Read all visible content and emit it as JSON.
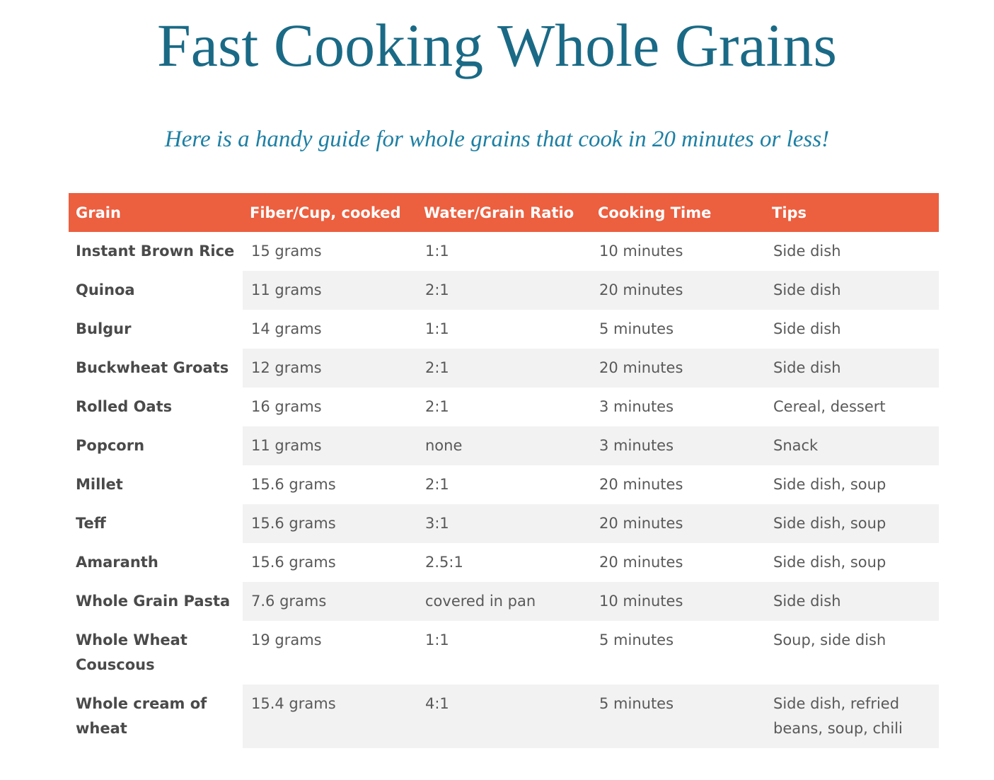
{
  "header": {
    "title": "Fast Cooking Whole Grains",
    "subtitle": "Here is a handy guide for whole grains that cook in 20 minutes or less!"
  },
  "table": {
    "headers": [
      "Grain",
      "Fiber/Cup, cooked",
      "Water/Grain Ratio",
      "Cooking Time",
      "Tips"
    ],
    "rows": [
      [
        "Instant Brown Rice",
        "15 grams",
        "1:1",
        "10 minutes",
        "Side dish"
      ],
      [
        "Quinoa",
        "11 grams",
        "2:1",
        "20 minutes",
        "Side dish"
      ],
      [
        "Bulgur",
        "14 grams",
        "1:1",
        "5 minutes",
        "Side dish"
      ],
      [
        "Buckwheat Groats",
        "12 grams",
        "2:1",
        "20 minutes",
        "Side dish"
      ],
      [
        "Rolled Oats",
        "16 grams",
        "2:1",
        "3 minutes",
        "Cereal, dessert"
      ],
      [
        "Popcorn",
        "11 grams",
        "none",
        "3 minutes",
        "Snack"
      ],
      [
        "Millet",
        "15.6 grams",
        "2:1",
        "20 minutes",
        "Side dish, soup"
      ],
      [
        "Teff",
        "15.6 grams",
        "3:1",
        "20 minutes",
        "Side dish, soup"
      ],
      [
        "Amaranth",
        "15.6 grams",
        "2.5:1",
        "20 minutes",
        "Side dish, soup"
      ],
      [
        "Whole Grain Pasta",
        "7.6 grams",
        "covered in pan",
        "10 minutes",
        "Side dish"
      ],
      [
        "Whole Wheat Couscous",
        "19 grams",
        "1:1",
        "5 minutes",
        "Soup, side dish"
      ],
      [
        "Whole cream of wheat",
        "15.4 grams",
        "4:1",
        "5 minutes",
        "Side dish, refried beans, soup, chili"
      ]
    ]
  }
}
